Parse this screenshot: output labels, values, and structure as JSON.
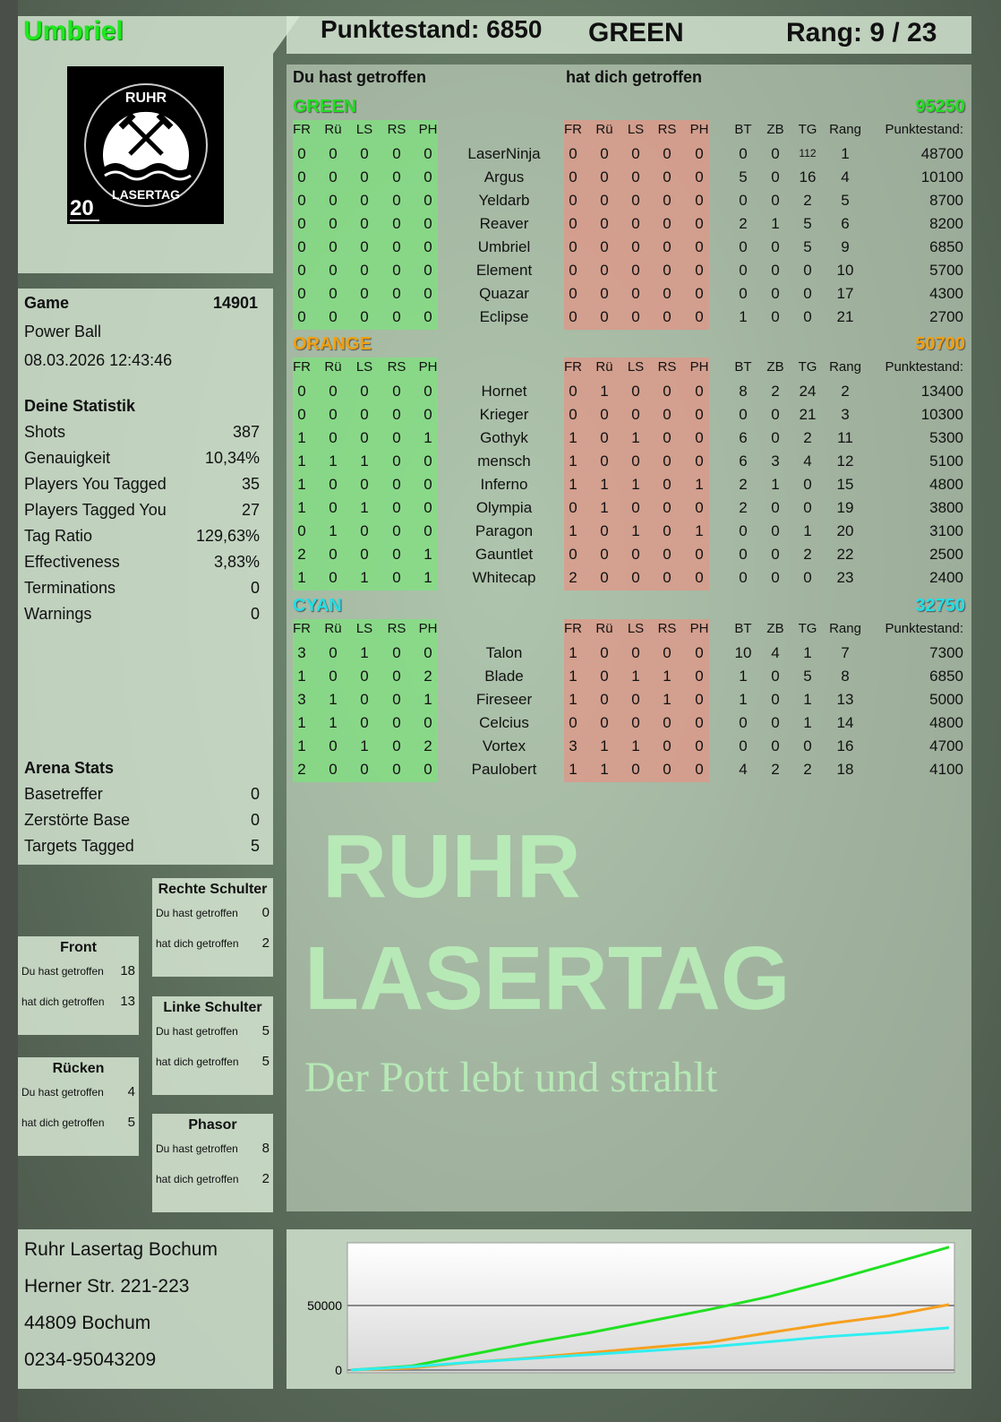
{
  "player": {
    "name": "Umbriel",
    "team": "GREEN",
    "score_label": "Punktestand: 6850",
    "rank_label": "Rang: 9 / 23"
  },
  "logo": {
    "text_top": "RUHR",
    "text_bottom": "LASERTAG",
    "badge": "20"
  },
  "game": {
    "label": "Game",
    "id": "14901",
    "mode": "Power Ball",
    "datetime": "08.03.2026 12:43:46"
  },
  "stats": {
    "title": "Deine Statistik",
    "items": [
      {
        "label": "Shots",
        "value": "387"
      },
      {
        "label": "Genauigkeit",
        "value": "10,34%"
      },
      {
        "label": "Players You Tagged",
        "value": "35"
      },
      {
        "label": "Players Tagged You",
        "value": "27"
      },
      {
        "label": "Tag Ratio",
        "value": "129,63%"
      },
      {
        "label": "Effectiveness",
        "value": "3,83%"
      },
      {
        "label": "Terminations",
        "value": "0"
      },
      {
        "label": "Warnings",
        "value": "0"
      }
    ]
  },
  "arena": {
    "title": "Arena Stats",
    "items": [
      {
        "label": "Basetreffer",
        "value": "0"
      },
      {
        "label": "Zerstörte Base",
        "value": "0"
      },
      {
        "label": "Targets Tagged",
        "value": "5"
      }
    ]
  },
  "zones": [
    {
      "title": "Rechte Schulter",
      "hit_label": "Du hast getroffen",
      "hit": "0",
      "got_label": "hat dich getroffen",
      "got": "2"
    },
    {
      "title": "Front",
      "hit_label": "Du hast getroffen",
      "hit": "18",
      "got_label": "hat dich getroffen",
      "got": "13"
    },
    {
      "title": "Linke Schulter",
      "hit_label": "Du hast getroffen",
      "hit": "5",
      "got_label": "hat dich getroffen",
      "got": "5"
    },
    {
      "title": "Rücken",
      "hit_label": "Du hast getroffen",
      "hit": "4",
      "got_label": "hat dich getroffen",
      "got": "5"
    },
    {
      "title": "Phasor",
      "hit_label": "Du hast getroffen",
      "hit": "8",
      "got_label": "hat dich getroffen",
      "got": "2"
    }
  ],
  "address": [
    "Ruhr Lasertag Bochum",
    "Herner Str. 221-223",
    "44809 Bochum",
    "0234-95043209"
  ],
  "watermark": {
    "line1": "RUHR",
    "line2": "LASERTAG",
    "line3": "Der Pott lebt und strahlt"
  },
  "table": {
    "you_hit": "Du hast getroffen",
    "hit_you": "hat dich getroffen",
    "cols_hit": [
      "FR",
      "Rü",
      "LS",
      "RS",
      "PH"
    ],
    "cols_stats": [
      "BT",
      "ZB",
      "TG",
      "Rang"
    ],
    "col_score": "Punktestand:",
    "teams": [
      {
        "name": "GREEN",
        "total": "95250",
        "color": "#22dd22",
        "rows": [
          [
            "0",
            "0",
            "0",
            "0",
            "0",
            "LaserNinja",
            "0",
            "0",
            "0",
            "0",
            "0",
            "0",
            "0",
            "112",
            "1",
            "48700"
          ],
          [
            "0",
            "0",
            "0",
            "0",
            "0",
            "Argus",
            "0",
            "0",
            "0",
            "0",
            "0",
            "5",
            "0",
            "16",
            "4",
            "10100"
          ],
          [
            "0",
            "0",
            "0",
            "0",
            "0",
            "Yeldarb",
            "0",
            "0",
            "0",
            "0",
            "0",
            "0",
            "0",
            "2",
            "5",
            "8700"
          ],
          [
            "0",
            "0",
            "0",
            "0",
            "0",
            "Reaver",
            "0",
            "0",
            "0",
            "0",
            "0",
            "2",
            "1",
            "5",
            "6",
            "8200"
          ],
          [
            "0",
            "0",
            "0",
            "0",
            "0",
            "Umbriel",
            "0",
            "0",
            "0",
            "0",
            "0",
            "0",
            "0",
            "5",
            "9",
            "6850"
          ],
          [
            "0",
            "0",
            "0",
            "0",
            "0",
            "Element",
            "0",
            "0",
            "0",
            "0",
            "0",
            "0",
            "0",
            "0",
            "10",
            "5700"
          ],
          [
            "0",
            "0",
            "0",
            "0",
            "0",
            "Quazar",
            "0",
            "0",
            "0",
            "0",
            "0",
            "0",
            "0",
            "0",
            "17",
            "4300"
          ],
          [
            "0",
            "0",
            "0",
            "0",
            "0",
            "Eclipse",
            "0",
            "0",
            "0",
            "0",
            "0",
            "1",
            "0",
            "0",
            "21",
            "2700"
          ]
        ]
      },
      {
        "name": "ORANGE",
        "total": "50700",
        "color": "#f0a010",
        "rows": [
          [
            "0",
            "0",
            "0",
            "0",
            "0",
            "Hornet",
            "0",
            "1",
            "0",
            "0",
            "0",
            "8",
            "2",
            "24",
            "2",
            "13400"
          ],
          [
            "0",
            "0",
            "0",
            "0",
            "0",
            "Krieger",
            "0",
            "0",
            "0",
            "0",
            "0",
            "0",
            "0",
            "21",
            "3",
            "10300"
          ],
          [
            "1",
            "0",
            "0",
            "0",
            "1",
            "Gothyk",
            "1",
            "0",
            "1",
            "0",
            "0",
            "6",
            "0",
            "2",
            "11",
            "5300"
          ],
          [
            "1",
            "1",
            "1",
            "0",
            "0",
            "mensch",
            "1",
            "0",
            "0",
            "0",
            "0",
            "6",
            "3",
            "4",
            "12",
            "5100"
          ],
          [
            "1",
            "0",
            "0",
            "0",
            "0",
            "Inferno",
            "1",
            "1",
            "1",
            "0",
            "1",
            "2",
            "1",
            "0",
            "15",
            "4800"
          ],
          [
            "1",
            "0",
            "1",
            "0",
            "0",
            "Olympia",
            "0",
            "1",
            "0",
            "0",
            "0",
            "2",
            "0",
            "0",
            "19",
            "3800"
          ],
          [
            "0",
            "1",
            "0",
            "0",
            "0",
            "Paragon",
            "1",
            "0",
            "1",
            "0",
            "1",
            "0",
            "0",
            "1",
            "20",
            "3100"
          ],
          [
            "2",
            "0",
            "0",
            "0",
            "1",
            "Gauntlet",
            "0",
            "0",
            "0",
            "0",
            "0",
            "0",
            "0",
            "2",
            "22",
            "2500"
          ],
          [
            "1",
            "0",
            "1",
            "0",
            "1",
            "Whitecap",
            "2",
            "0",
            "0",
            "0",
            "0",
            "0",
            "0",
            "0",
            "23",
            "2400"
          ]
        ]
      },
      {
        "name": "CYAN",
        "total": "32750",
        "color": "#20e0e8",
        "rows": [
          [
            "3",
            "0",
            "1",
            "0",
            "0",
            "Talon",
            "1",
            "0",
            "0",
            "0",
            "0",
            "10",
            "4",
            "1",
            "7",
            "7300"
          ],
          [
            "1",
            "0",
            "0",
            "0",
            "2",
            "Blade",
            "1",
            "0",
            "1",
            "1",
            "0",
            "1",
            "0",
            "5",
            "8",
            "6850"
          ],
          [
            "3",
            "1",
            "0",
            "0",
            "1",
            "Fireseer",
            "1",
            "0",
            "0",
            "1",
            "0",
            "1",
            "0",
            "1",
            "13",
            "5000"
          ],
          [
            "1",
            "1",
            "0",
            "0",
            "0",
            "Celcius",
            "0",
            "0",
            "0",
            "0",
            "0",
            "0",
            "0",
            "1",
            "14",
            "4800"
          ],
          [
            "1",
            "0",
            "1",
            "0",
            "2",
            "Vortex",
            "3",
            "1",
            "1",
            "0",
            "0",
            "0",
            "0",
            "0",
            "16",
            "4700"
          ],
          [
            "2",
            "0",
            "0",
            "0",
            "0",
            "Paulobert",
            "1",
            "1",
            "0",
            "0",
            "0",
            "4",
            "2",
            "2",
            "18",
            "4100"
          ]
        ]
      }
    ]
  },
  "chart_data": {
    "type": "line",
    "title": "",
    "xlabel": "",
    "ylabel": "",
    "ylim": [
      0,
      97000
    ],
    "yticks": [
      "0",
      "50000"
    ],
    "grid": true,
    "x": [
      0,
      1,
      2,
      3,
      4,
      5,
      6,
      7,
      8,
      9,
      10
    ],
    "series": [
      {
        "team": "GREEN",
        "color": "#22e022",
        "values": [
          0,
          3000,
          12000,
          21000,
          29000,
          38000,
          47000,
          57000,
          69000,
          82000,
          95250
        ]
      },
      {
        "team": "ORANGE",
        "color": "#f5a020",
        "values": [
          0,
          1500,
          6000,
          9500,
          13500,
          17500,
          21500,
          29000,
          36000,
          42000,
          50700
        ]
      },
      {
        "team": "CYAN",
        "color": "#30eef0",
        "values": [
          0,
          2500,
          6000,
          9000,
          12000,
          15000,
          18000,
          22000,
          26000,
          29000,
          32750
        ]
      }
    ]
  }
}
